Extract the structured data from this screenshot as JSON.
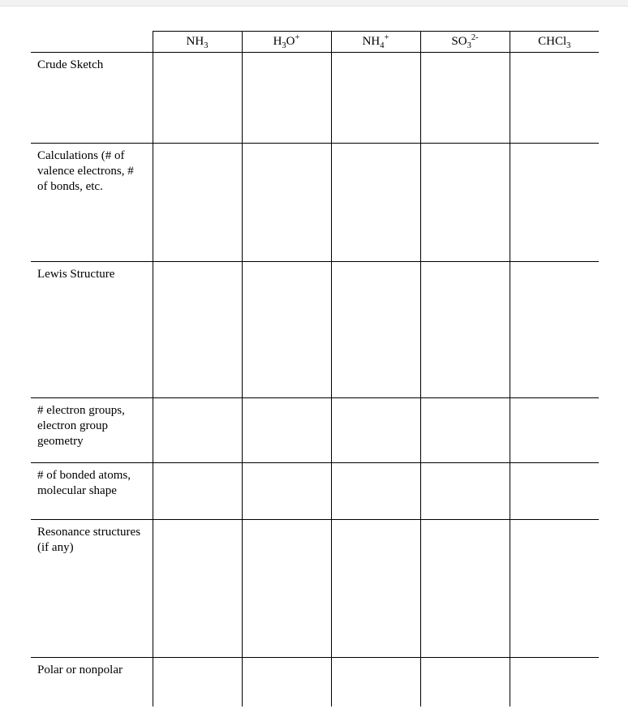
{
  "table": {
    "background_color": "#ffffff",
    "border_color": "#000000",
    "font_family": "Times New Roman",
    "label_fontsize": 15,
    "header_fontsize": 15,
    "columns": [
      {
        "formula_html": "NH<sub>3</sub>"
      },
      {
        "formula_html": "H<sub>3</sub>O<sup>+</sup>"
      },
      {
        "formula_html": "NH<sub>4</sub><sup>+</sup>"
      },
      {
        "formula_html": "SO<sub>3</sub><sup>2-</sup>"
      },
      {
        "formula_html": "CHCl<sub>3</sub>"
      }
    ],
    "rows": [
      {
        "label": "Crude Sketch",
        "height_class": "h-sketch"
      },
      {
        "label": "Calculations (# of valence electrons, # of bonds, etc.",
        "height_class": "h-calc"
      },
      {
        "label": "Lewis Structure",
        "height_class": "h-lewis"
      },
      {
        "label": "# electron groups, electron group geometry",
        "height_class": "h-egroup"
      },
      {
        "label": "# of bonded atoms, molecular shape",
        "height_class": "h-bonded"
      },
      {
        "label": "Resonance structures (if any)",
        "height_class": "h-reson"
      },
      {
        "label": "Polar or nonpolar",
        "height_class": "h-polar"
      }
    ]
  }
}
